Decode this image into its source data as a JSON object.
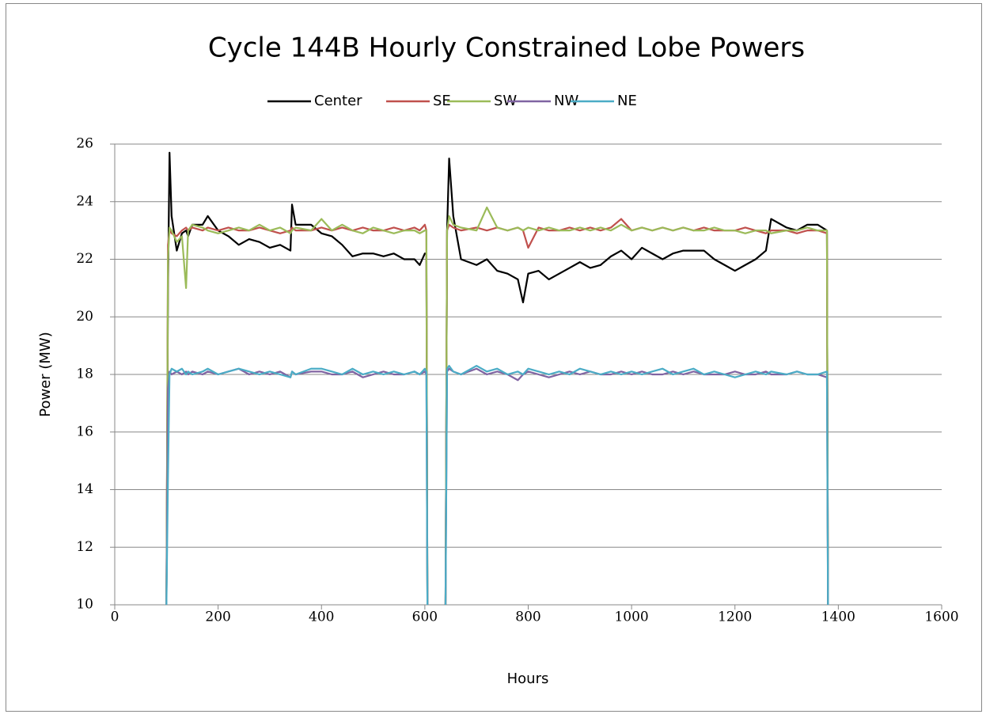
{
  "chart_data": {
    "type": "line",
    "title": "Cycle 144B Hourly Constrained Lobe Powers",
    "x_label": "Hours",
    "y_label": "Power (MW)",
    "x": [
      100,
      103,
      106,
      110,
      120,
      130,
      138,
      142,
      150,
      170,
      180,
      200,
      220,
      240,
      260,
      280,
      300,
      320,
      340,
      343,
      350,
      380,
      400,
      420,
      440,
      460,
      480,
      500,
      520,
      540,
      560,
      580,
      590,
      600,
      603,
      605,
      620,
      640,
      643,
      647,
      655,
      670,
      700,
      720,
      740,
      760,
      780,
      790,
      800,
      820,
      840,
      860,
      880,
      900,
      920,
      940,
      960,
      980,
      1000,
      1020,
      1040,
      1060,
      1080,
      1100,
      1120,
      1140,
      1160,
      1180,
      1200,
      1220,
      1240,
      1260,
      1270,
      1300,
      1320,
      1340,
      1360,
      1378,
      1380
    ],
    "series": [
      {
        "name": "Center",
        "color": "#000000",
        "values": [
          10,
          21,
          25.7,
          23.5,
          22.3,
          22.9,
          23.0,
          22.8,
          23.2,
          23.2,
          23.5,
          23.0,
          22.8,
          22.5,
          22.7,
          22.6,
          22.4,
          22.5,
          22.3,
          23.9,
          23.2,
          23.2,
          22.9,
          22.8,
          22.5,
          22.1,
          22.2,
          22.2,
          22.1,
          22.2,
          22.0,
          22.0,
          21.8,
          22.2,
          22.2,
          10,
          null,
          10,
          23,
          25.5,
          23.5,
          22,
          21.8,
          22.0,
          21.6,
          21.5,
          21.3,
          20.5,
          21.5,
          21.6,
          21.3,
          21.5,
          21.7,
          21.9,
          21.7,
          21.8,
          22.1,
          22.3,
          22.0,
          22.4,
          22.2,
          22.0,
          22.2,
          22.3,
          22.3,
          22.3,
          22.0,
          21.8,
          21.6,
          21.8,
          22.0,
          22.3,
          23.4,
          23.1,
          23.0,
          23.2,
          23.2,
          23.0,
          10
        ]
      },
      {
        "name": "SE",
        "color": "#c0504d",
        "values": [
          10,
          22.5,
          23.0,
          22.9,
          22.8,
          23.0,
          23.1,
          23.0,
          23.1,
          23.0,
          23.1,
          23.0,
          23.1,
          23.0,
          23.0,
          23.1,
          23.0,
          22.9,
          23.0,
          23.1,
          23.0,
          23.0,
          23.1,
          23.0,
          23.1,
          23.0,
          23.1,
          23.0,
          23.0,
          23.1,
          23.0,
          23.1,
          23.0,
          23.2,
          23.0,
          10,
          null,
          10,
          23.0,
          23.2,
          23.1,
          23.0,
          23.1,
          23.0,
          23.1,
          23.0,
          23.1,
          23.0,
          22.4,
          23.1,
          23.0,
          23.0,
          23.1,
          23.0,
          23.1,
          23.0,
          23.1,
          23.4,
          23.0,
          23.1,
          23.0,
          23.1,
          23.0,
          23.1,
          23.0,
          23.1,
          23.0,
          23.0,
          23.0,
          23.1,
          23.0,
          22.9,
          23.0,
          23.0,
          22.9,
          23.0,
          23.0,
          22.9,
          10
        ]
      },
      {
        "name": "SW",
        "color": "#9bbb59",
        "values": [
          10,
          22.0,
          23.1,
          23.0,
          22.6,
          22.8,
          21.0,
          23.0,
          23.2,
          23.1,
          23.0,
          22.9,
          23.0,
          23.1,
          23.0,
          23.2,
          23.0,
          23.1,
          22.9,
          23.0,
          23.1,
          23.0,
          23.4,
          23.0,
          23.2,
          23.0,
          22.9,
          23.1,
          23.0,
          22.9,
          23.0,
          23.0,
          22.9,
          23.0,
          23.0,
          10,
          null,
          10,
          23.0,
          23.5,
          23.2,
          23.1,
          23.0,
          23.8,
          23.1,
          23.0,
          23.1,
          23.0,
          23.1,
          23.0,
          23.1,
          23.0,
          23.0,
          23.1,
          23.0,
          23.1,
          23.0,
          23.2,
          23.0,
          23.1,
          23.0,
          23.1,
          23.0,
          23.1,
          23.0,
          23.0,
          23.1,
          23.0,
          23.0,
          22.9,
          23.0,
          23.0,
          22.9,
          23.0,
          23.0,
          23.1,
          23.0,
          23.0,
          10
        ]
      },
      {
        "name": "NW",
        "color": "#8064a2",
        "values": [
          10,
          17.5,
          18.1,
          18.0,
          18.1,
          18.0,
          18.1,
          18.0,
          18.1,
          18.0,
          18.1,
          18.0,
          18.1,
          18.2,
          18.0,
          18.1,
          18.0,
          18.1,
          17.9,
          18.1,
          18.0,
          18.1,
          18.1,
          18.0,
          18.0,
          18.1,
          17.9,
          18.0,
          18.1,
          18.0,
          18.0,
          18.1,
          18.0,
          18.1,
          18.0,
          10,
          null,
          10,
          18.1,
          18.2,
          18.1,
          18.0,
          18.2,
          18.0,
          18.1,
          18.0,
          17.8,
          18.0,
          18.1,
          18.0,
          17.9,
          18.0,
          18.1,
          18.0,
          18.1,
          18.0,
          18.0,
          18.1,
          18.0,
          18.1,
          18.0,
          18.0,
          18.1,
          18.0,
          18.1,
          18.0,
          18.0,
          18.0,
          18.1,
          18.0,
          18.0,
          18.1,
          18.0,
          18.0,
          18.1,
          18.0,
          18.0,
          17.9,
          10
        ]
      },
      {
        "name": "NE",
        "color": "#4bacc6",
        "values": [
          10,
          14.4,
          18.0,
          18.2,
          18.1,
          18.2,
          18.0,
          18.1,
          18.0,
          18.1,
          18.2,
          18.0,
          18.1,
          18.2,
          18.1,
          18.0,
          18.1,
          18.0,
          17.9,
          18.1,
          18.0,
          18.2,
          18.2,
          18.1,
          18.0,
          18.2,
          18.0,
          18.1,
          18.0,
          18.1,
          18.0,
          18.1,
          18.0,
          18.2,
          18.1,
          10,
          null,
          10,
          18.2,
          18.3,
          18.1,
          18.0,
          18.3,
          18.1,
          18.2,
          18.0,
          18.1,
          18.0,
          18.2,
          18.1,
          18.0,
          18.1,
          18.0,
          18.2,
          18.1,
          18.0,
          18.1,
          18.0,
          18.1,
          18.0,
          18.1,
          18.2,
          18.0,
          18.1,
          18.2,
          18.0,
          18.1,
          18.0,
          17.9,
          18.0,
          18.1,
          18.0,
          18.1,
          18.0,
          18.1,
          18.0,
          18.0,
          18.1,
          10
        ]
      }
    ],
    "xlim": [
      0,
      1600
    ],
    "xticks": [
      0,
      200,
      400,
      600,
      800,
      1000,
      1200,
      1400,
      1600
    ],
    "ylim": [
      10,
      26
    ],
    "yticks": [
      10,
      12,
      14,
      16,
      18,
      20,
      22,
      24,
      26
    ],
    "grid": true,
    "legend": "top"
  }
}
